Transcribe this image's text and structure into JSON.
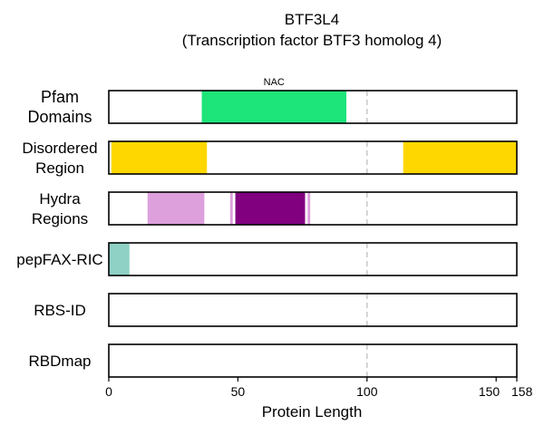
{
  "chart_data": {
    "type": "domain-track",
    "title": "BTF3L4",
    "subtitle": "(Transcription factor BTF3 homolog 4)",
    "xlabel": "Protein Length",
    "xlim": [
      0,
      158
    ],
    "xticks": [
      {
        "value": 0,
        "label": "0"
      },
      {
        "value": 50,
        "label": "50"
      },
      {
        "value": 100,
        "label": "100"
      },
      {
        "value": 150,
        "label": "150"
      },
      {
        "value": 158,
        "label": "158"
      }
    ],
    "reference_line": 100,
    "tracks": [
      {
        "label": [
          "Pfam",
          "Domains"
        ],
        "segments": [
          {
            "start": 36,
            "end": 92,
            "color": "#1de57a",
            "label": "NAC"
          }
        ]
      },
      {
        "label": [
          "Disordered",
          "Region"
        ],
        "segments": [
          {
            "start": 1,
            "end": 38,
            "color": "#ffd700"
          },
          {
            "start": 114,
            "end": 158,
            "color": "#ffd700"
          }
        ]
      },
      {
        "label": [
          "Hydra",
          "Regions"
        ],
        "segments": [
          {
            "start": 15,
            "end": 37,
            "color": "#dda0dd"
          },
          {
            "start": 47,
            "end": 48,
            "color": "#dda0dd"
          },
          {
            "start": 49,
            "end": 76,
            "color": "#800080"
          },
          {
            "start": 77,
            "end": 78,
            "color": "#dda0dd"
          }
        ]
      },
      {
        "label": [
          "pepFAX-RIC"
        ],
        "segments": [
          {
            "start": 0,
            "end": 8,
            "color": "#8fd1c5"
          }
        ]
      },
      {
        "label": [
          "RBS-ID"
        ],
        "segments": []
      },
      {
        "label": [
          "RBDmap"
        ],
        "segments": []
      }
    ]
  }
}
